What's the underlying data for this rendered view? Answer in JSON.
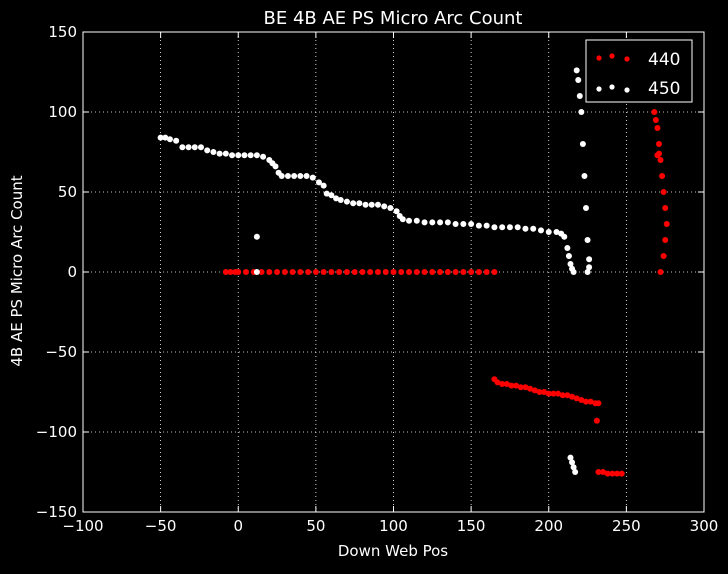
{
  "colors": {
    "background": "#000000",
    "foreground": "#ffffff",
    "series_440": "#ff0000",
    "series_450": "#ffffff"
  },
  "chart_data": {
    "type": "scatter",
    "title": "BE 4B AE PS Micro Arc Count",
    "xlabel": "Down Web Pos",
    "ylabel": "4B AE PS Micro Arc Count",
    "xlim": [
      -100,
      300
    ],
    "ylim": [
      -150,
      150
    ],
    "xticks": [
      "−100",
      "−50",
      "0",
      "50",
      "100",
      "150",
      "200",
      "250",
      "300"
    ],
    "yticks": [
      "−150",
      "−100",
      "−50",
      "0",
      "50",
      "100",
      "150"
    ],
    "grid": true,
    "legend_position": "top-right",
    "series": [
      {
        "name": "440",
        "color": "#ff0000",
        "x": [
          -8,
          -5,
          -2,
          0,
          5,
          10,
          15,
          20,
          25,
          30,
          35,
          40,
          45,
          50,
          55,
          60,
          65,
          70,
          75,
          80,
          85,
          90,
          95,
          100,
          105,
          110,
          115,
          120,
          125,
          130,
          135,
          140,
          145,
          150,
          155,
          160,
          165,
          165,
          167,
          170,
          173,
          176,
          179,
          182,
          185,
          188,
          191,
          194,
          197,
          200,
          203,
          206,
          209,
          212,
          215,
          218,
          221,
          224,
          227,
          230,
          232,
          231,
          232,
          235,
          238,
          241,
          244,
          247,
          268,
          269,
          270,
          271,
          272,
          273,
          274,
          275,
          276,
          275,
          274,
          272,
          271,
          270
        ],
        "y": [
          0,
          0,
          0,
          0,
          0,
          0,
          0,
          0,
          0,
          0,
          0,
          0,
          0,
          0,
          0,
          0,
          0,
          0,
          0,
          0,
          0,
          0,
          0,
          0,
          0,
          0,
          0,
          0,
          0,
          0,
          0,
          0,
          0,
          0,
          0,
          0,
          0,
          -67,
          -69,
          -70,
          -70,
          -71,
          -71,
          -72,
          -72,
          -73,
          -74,
          -75,
          -75,
          -76,
          -76,
          -76,
          -77,
          -77,
          -78,
          -79,
          -80,
          -81,
          -81,
          -82,
          -82,
          -93,
          -125,
          -125,
          -126,
          -126,
          -126,
          -126,
          100,
          95,
          90,
          80,
          70,
          60,
          50,
          40,
          30,
          20,
          10,
          0,
          74,
          73
        ]
      },
      {
        "name": "450",
        "color": "#ffffff",
        "x": [
          -50,
          -47,
          -44,
          -40,
          -36,
          -32,
          -28,
          -24,
          -20,
          -16,
          -12,
          -8,
          -4,
          0,
          4,
          8,
          12,
          16,
          20,
          22,
          24,
          26,
          28,
          32,
          36,
          40,
          44,
          48,
          52,
          55,
          57,
          60,
          63,
          66,
          70,
          74,
          78,
          82,
          86,
          90,
          94,
          98,
          102,
          104,
          106,
          110,
          115,
          120,
          125,
          130,
          135,
          140,
          145,
          150,
          155,
          160,
          165,
          170,
          175,
          180,
          185,
          190,
          195,
          200,
          205,
          208,
          210,
          212,
          213,
          214,
          215,
          216,
          12,
          12,
          218,
          219,
          220,
          221,
          222,
          223,
          224,
          225,
          226,
          226,
          225,
          214,
          215,
          216,
          217
        ],
        "y": [
          84,
          84,
          83,
          82,
          78,
          78,
          78,
          78,
          76,
          75,
          74,
          74,
          73,
          73,
          73,
          73,
          73,
          72,
          70,
          68,
          66,
          62,
          60,
          60,
          60,
          60,
          60,
          59,
          56,
          54,
          49,
          48,
          46,
          45,
          44,
          43,
          43,
          42,
          42,
          42,
          41,
          40,
          38,
          35,
          33,
          32,
          32,
          31,
          31,
          31,
          31,
          30,
          30,
          30,
          29,
          29,
          28,
          28,
          28,
          28,
          27,
          27,
          26,
          25,
          25,
          24,
          22,
          15,
          10,
          5,
          2,
          0,
          22,
          0,
          126,
          120,
          110,
          100,
          80,
          60,
          40,
          20,
          8,
          3,
          0,
          -116,
          -119,
          -122,
          -125
        ]
      }
    ]
  }
}
